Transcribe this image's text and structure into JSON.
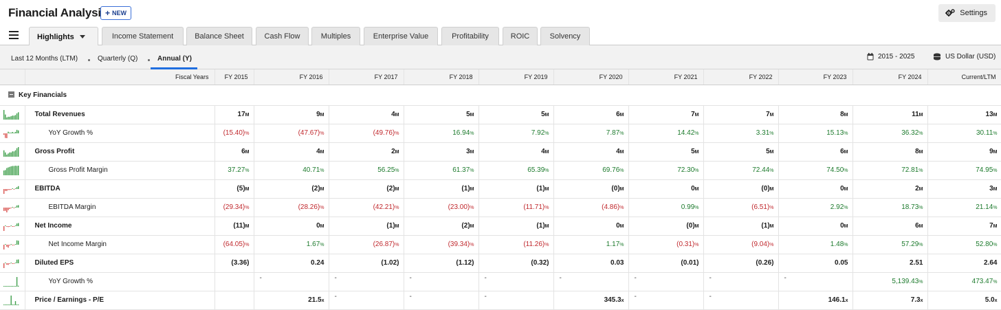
{
  "header": {
    "title": "Financial Analysis",
    "new_label": "NEW",
    "settings_label": "Settings"
  },
  "tabs": [
    {
      "label": "Highlights"
    },
    {
      "label": "Income Statement"
    },
    {
      "label": "Balance Sheet"
    },
    {
      "label": "Cash Flow"
    },
    {
      "label": "Multiples"
    },
    {
      "label": "Enterprise Value"
    },
    {
      "label": "Profitability"
    },
    {
      "label": "ROIC"
    },
    {
      "label": "Solvency"
    }
  ],
  "periods": [
    {
      "label": "Last 12 Months (LTM)"
    },
    {
      "label": "Quarterly (Q)"
    },
    {
      "label": "Annual (Y)"
    }
  ],
  "range": {
    "years": "2015 - 2025",
    "currency": "US Dollar (USD)"
  },
  "table": {
    "header_label": "Fiscal Years",
    "columns": [
      "FY 2015",
      "FY 2016",
      "FY 2017",
      "FY 2018",
      "FY 2019",
      "FY 2020",
      "FY 2021",
      "FY 2022",
      "FY 2023",
      "FY 2024",
      "Current/LTM"
    ],
    "section": "Key Financials",
    "rows": [
      {
        "label": "Total Revenues",
        "sub": false,
        "bold": true,
        "unit": "M",
        "values": [
          "17",
          "9",
          "4",
          "5",
          "5",
          "6",
          "7",
          "7",
          "8",
          "11",
          "13"
        ],
        "tones": [
          "n",
          "n",
          "n",
          "n",
          "n",
          "n",
          "n",
          "n",
          "n",
          "n",
          "n"
        ],
        "spark": [
          17,
          9,
          4,
          5,
          5,
          6,
          7,
          7,
          8,
          11,
          13
        ]
      },
      {
        "label": "YoY Growth %",
        "sub": true,
        "bold": false,
        "unit": "%",
        "values": [
          "(15.40)",
          "(47.67)",
          "(49.76)",
          "16.94",
          "7.92",
          "7.87",
          "14.42",
          "3.31",
          "15.13",
          "36.32",
          "30.11"
        ],
        "tones": [
          "neg",
          "neg",
          "neg",
          "pos",
          "pos",
          "pos",
          "pos",
          "pos",
          "pos",
          "pos",
          "pos"
        ],
        "spark": [
          -15.4,
          -47.67,
          -49.76,
          16.94,
          7.92,
          7.87,
          14.42,
          3.31,
          15.13,
          36.32,
          30.11
        ]
      },
      {
        "label": "Gross Profit",
        "sub": false,
        "bold": true,
        "unit": "M",
        "values": [
          "6",
          "4",
          "2",
          "3",
          "4",
          "4",
          "5",
          "5",
          "6",
          "8",
          "9"
        ],
        "tones": [
          "n",
          "n",
          "n",
          "n",
          "n",
          "n",
          "n",
          "n",
          "n",
          "n",
          "n"
        ],
        "spark": [
          6,
          4,
          2,
          3,
          4,
          4,
          5,
          5,
          6,
          8,
          9
        ]
      },
      {
        "label": "Gross Profit Margin",
        "sub": true,
        "bold": false,
        "unit": "%",
        "values": [
          "37.27",
          "40.71",
          "56.25",
          "61.37",
          "65.39",
          "69.76",
          "72.30",
          "72.44",
          "74.50",
          "72.81",
          "74.95"
        ],
        "tones": [
          "pos",
          "pos",
          "pos",
          "pos",
          "pos",
          "pos",
          "pos",
          "pos",
          "pos",
          "pos",
          "pos"
        ],
        "spark": [
          37.27,
          40.71,
          56.25,
          61.37,
          65.39,
          69.76,
          72.3,
          72.44,
          74.5,
          72.81,
          74.95
        ]
      },
      {
        "label": "EBITDA",
        "sub": false,
        "bold": true,
        "unit": "M",
        "values": [
          "(5)",
          "(2)",
          "(2)",
          "(1)",
          "(1)",
          "(0)",
          "0",
          "(0)",
          "0",
          "2",
          "3"
        ],
        "tones": [
          "n",
          "n",
          "n",
          "n",
          "n",
          "n",
          "n",
          "n",
          "n",
          "n",
          "n"
        ],
        "spark": [
          -5,
          -2,
          -2,
          -1,
          -1,
          -0.3,
          0.1,
          -0.4,
          0.2,
          2,
          3
        ]
      },
      {
        "label": "EBITDA Margin",
        "sub": true,
        "bold": false,
        "unit": "%",
        "values": [
          "(29.34)",
          "(28.26)",
          "(42.21)",
          "(23.00)",
          "(11.71)",
          "(4.86)",
          "0.99",
          "(6.51)",
          "2.92",
          "18.73",
          "21.14"
        ],
        "tones": [
          "neg",
          "neg",
          "neg",
          "neg",
          "neg",
          "neg",
          "pos",
          "neg",
          "pos",
          "pos",
          "pos"
        ],
        "spark": [
          -29.34,
          -28.26,
          -42.21,
          -23,
          -11.71,
          -4.86,
          0.99,
          -6.51,
          2.92,
          18.73,
          21.14
        ]
      },
      {
        "label": "Net Income",
        "sub": false,
        "bold": true,
        "unit": "M",
        "values": [
          "(11)",
          "0",
          "(1)",
          "(2)",
          "(1)",
          "0",
          "(0)",
          "(1)",
          "0",
          "6",
          "7"
        ],
        "tones": [
          "n",
          "n",
          "n",
          "n",
          "n",
          "n",
          "n",
          "n",
          "n",
          "n",
          "n"
        ],
        "spark": [
          -11,
          0.1,
          -1,
          -2,
          -1,
          0.1,
          -0.1,
          -1,
          0.1,
          6,
          7
        ]
      },
      {
        "label": "Net Income Margin",
        "sub": true,
        "bold": false,
        "unit": "%",
        "values": [
          "(64.05)",
          "1.67",
          "(26.87)",
          "(39.34)",
          "(11.26)",
          "1.17",
          "(0.31)",
          "(9.04)",
          "1.48",
          "57.29",
          "52.80"
        ],
        "tones": [
          "neg",
          "pos",
          "neg",
          "neg",
          "neg",
          "pos",
          "neg",
          "neg",
          "pos",
          "pos",
          "pos"
        ],
        "spark": [
          -64.05,
          1.67,
          -26.87,
          -39.34,
          -11.26,
          1.17,
          -0.31,
          -9.04,
          1.48,
          57.29,
          52.8
        ]
      },
      {
        "label": "Diluted EPS",
        "sub": false,
        "bold": true,
        "unit": "",
        "values": [
          "(3.36)",
          "0.24",
          "(1.02)",
          "(1.12)",
          "(0.32)",
          "0.03",
          "(0.01)",
          "(0.26)",
          "0.05",
          "2.51",
          "2.64"
        ],
        "tones": [
          "n",
          "n",
          "n",
          "n",
          "n",
          "n",
          "n",
          "n",
          "n",
          "n",
          "n"
        ],
        "spark": [
          -3.36,
          0.24,
          -1.02,
          -1.12,
          -0.32,
          0.03,
          -0.01,
          -0.26,
          0.05,
          2.51,
          2.64
        ]
      },
      {
        "label": "YoY Growth %",
        "sub": true,
        "bold": false,
        "unit": "%",
        "values": [
          "",
          "-",
          "-",
          "-",
          "-",
          "-",
          "-",
          "-",
          "-",
          "5,139.43",
          "473.47"
        ],
        "tones": [
          "n",
          "dash",
          "dash",
          "dash",
          "dash",
          "dash",
          "dash",
          "dash",
          "dash",
          "pos",
          "pos"
        ],
        "spark": [
          0,
          0,
          0,
          0,
          0,
          0,
          0,
          0,
          0,
          5139.43,
          473.47
        ]
      },
      {
        "label": "Price / Earnings - P/E",
        "sub": false,
        "bold": true,
        "unit": "x",
        "values": [
          "",
          "21.5",
          "-",
          "-",
          "-",
          "345.3",
          "-",
          "-",
          "146.1",
          "7.3",
          "5.0"
        ],
        "tones": [
          "n",
          "n",
          "dash",
          "dash",
          "dash",
          "n",
          "dash",
          "dash",
          "n",
          "n",
          "n"
        ],
        "spark": [
          0,
          21.5,
          0,
          0,
          0,
          345.3,
          0,
          0,
          146.1,
          7.3,
          5.0
        ]
      }
    ]
  },
  "colors": {
    "positive": "#1c7a2c",
    "negative": "#c0282d",
    "accent": "#1f6ee0",
    "spark_pos": "#3e9e4a",
    "spark_neg": "#d9534f"
  }
}
